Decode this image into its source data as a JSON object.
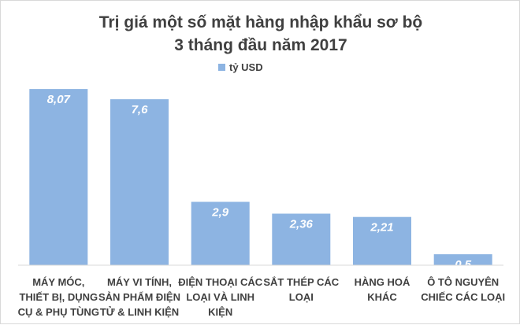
{
  "chart_data": {
    "type": "bar",
    "title_lines": [
      "Trị giá một số mặt hàng nhập khẩu sơ bộ",
      "3 tháng đầu năm 2017"
    ],
    "xlabel": "",
    "ylabel": "",
    "ylim": [
      0,
      9
    ],
    "grid": false,
    "legend_position": "top-center",
    "series": [
      {
        "name": "tỷ USD",
        "color": "#8db4e2",
        "values": [
          8.07,
          7.6,
          2.9,
          2.36,
          2.21,
          0.5
        ],
        "labels": [
          "8,07",
          "7,6",
          "2,9",
          "2,36",
          "2,21",
          "0,5"
        ]
      }
    ],
    "categories": [
      [
        "MÁY MÓC,",
        "THIẾT BỊ, DỤNG",
        "CỤ & PHỤ TÙNG"
      ],
      [
        "MÁY VI TÍNH,",
        "SẢN PHẨM ĐIỆN",
        "TỬ & LINH KIỆN"
      ],
      [
        "ĐIỆN THOẠI CÁC",
        "LOẠI VÀ LINH",
        "KIỆN"
      ],
      [
        "SẮT THÉP CÁC",
        "LOẠI"
      ],
      [
        "HÀNG HOÁ",
        "KHÁC"
      ],
      [
        "Ô TÔ NGUYÊN",
        "CHIẾC CÁC LOẠI"
      ]
    ]
  }
}
